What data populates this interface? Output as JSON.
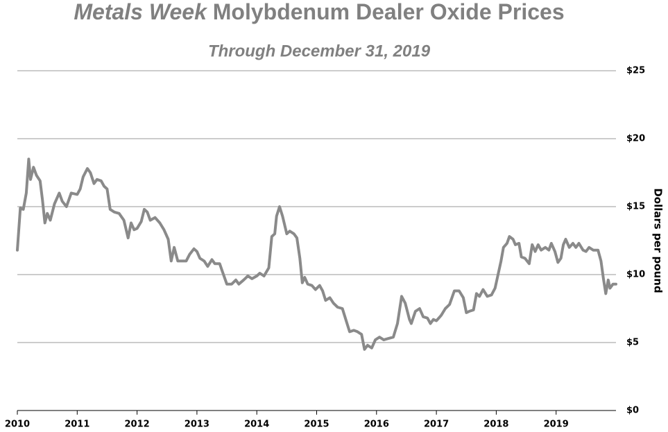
{
  "chart_data": {
    "type": "line",
    "title_source": "Metals Week",
    "title": "Molybdenum Dealer Oxide Prices",
    "subtitle": "Through December 31, 2019",
    "y_label": "Dollars per pound",
    "xlim": [
      2010,
      2020
    ],
    "xticks": [
      2010,
      2011,
      2012,
      2013,
      2014,
      2015,
      2016,
      2017,
      2018,
      2019
    ],
    "ylim": [
      0,
      25
    ],
    "yticks": [
      {
        "value": 0,
        "label": "$0"
      },
      {
        "value": 5,
        "label": "$5"
      },
      {
        "value": 10,
        "label": "$10"
      },
      {
        "value": 15,
        "label": "$15"
      },
      {
        "value": 20,
        "label": "$20"
      },
      {
        "value": 25,
        "label": "$25"
      }
    ],
    "grid": true,
    "series": [
      {
        "color": "#8a8a8a",
        "x": [
          2010.0,
          2010.05,
          2010.1,
          2010.15,
          2010.19,
          2010.22,
          2010.27,
          2010.32,
          2010.38,
          2010.42,
          2010.46,
          2010.5,
          2010.55,
          2010.62,
          2010.7,
          2010.75,
          2010.82,
          2010.9,
          2011.0,
          2011.05,
          2011.1,
          2011.17,
          2011.22,
          2011.28,
          2011.33,
          2011.4,
          2011.45,
          2011.5,
          2011.55,
          2011.62,
          2011.7,
          2011.78,
          2011.85,
          2011.9,
          2011.95,
          2012.0,
          2012.07,
          2012.12,
          2012.17,
          2012.22,
          2012.3,
          2012.38,
          2012.45,
          2012.52,
          2012.57,
          2012.62,
          2012.68,
          2012.75,
          2012.82,
          2012.88,
          2012.95,
          2013.0,
          2013.05,
          2013.12,
          2013.18,
          2013.25,
          2013.3,
          2013.38,
          2013.42,
          2013.5,
          2013.58,
          2013.65,
          2013.7,
          2013.78,
          2013.85,
          2013.92,
          2014.0,
          2014.05,
          2014.12,
          2014.2,
          2014.25,
          2014.3,
          2014.33,
          2014.38,
          2014.43,
          2014.5,
          2014.55,
          2014.62,
          2014.67,
          2014.72,
          2014.76,
          2014.8,
          2014.85,
          2014.92,
          2014.98,
          2015.05,
          2015.1,
          2015.15,
          2015.22,
          2015.28,
          2015.35,
          2015.43,
          2015.5,
          2015.55,
          2015.62,
          2015.68,
          2015.75,
          2015.8,
          2015.85,
          2015.92,
          2015.98,
          2016.05,
          2016.12,
          2016.2,
          2016.28,
          2016.35,
          2016.42,
          2016.48,
          2016.55,
          2016.58,
          2016.65,
          2016.72,
          2016.78,
          2016.85,
          2016.9,
          2016.95,
          2017.0,
          2017.08,
          2017.15,
          2017.22,
          2017.3,
          2017.38,
          2017.45,
          2017.5,
          2017.55,
          2017.62,
          2017.67,
          2017.72,
          2017.78,
          2017.85,
          2017.92,
          2017.98,
          2018.03,
          2018.08,
          2018.12,
          2018.18,
          2018.22,
          2018.28,
          2018.32,
          2018.38,
          2018.42,
          2018.48,
          2018.55,
          2018.6,
          2018.65,
          2018.7,
          2018.75,
          2018.82,
          2018.88,
          2018.92,
          2018.98,
          2019.03,
          2019.08,
          2019.12,
          2019.16,
          2019.22,
          2019.28,
          2019.33,
          2019.38,
          2019.45,
          2019.5,
          2019.55,
          2019.62,
          2019.7,
          2019.75,
          2019.79,
          2019.83,
          2019.87,
          2019.9,
          2019.95,
          2020.0
        ],
        "values": [
          11.8,
          14.9,
          14.8,
          16.0,
          18.5,
          17.0,
          17.9,
          17.3,
          16.9,
          15.5,
          13.8,
          14.5,
          14.0,
          15.2,
          16.0,
          15.4,
          15.0,
          16.0,
          15.9,
          16.3,
          17.2,
          17.8,
          17.5,
          16.7,
          17.0,
          16.9,
          16.5,
          16.3,
          14.8,
          14.6,
          14.5,
          14.0,
          12.7,
          13.8,
          13.3,
          13.4,
          13.9,
          14.8,
          14.6,
          14.0,
          14.2,
          13.8,
          13.3,
          12.6,
          11.0,
          12.0,
          11.0,
          11.0,
          11.0,
          11.5,
          11.9,
          11.7,
          11.2,
          11.0,
          10.6,
          11.1,
          10.8,
          10.8,
          10.3,
          9.3,
          9.3,
          9.6,
          9.3,
          9.6,
          9.9,
          9.7,
          9.9,
          10.1,
          9.9,
          10.5,
          12.8,
          13.0,
          14.3,
          15.0,
          14.3,
          13.0,
          13.2,
          13.0,
          12.7,
          11.2,
          9.4,
          9.8,
          9.3,
          9.2,
          8.9,
          9.2,
          8.8,
          8.1,
          8.3,
          7.9,
          7.6,
          7.5,
          6.5,
          5.8,
          5.9,
          5.8,
          5.6,
          4.5,
          4.8,
          4.6,
          5.2,
          5.4,
          5.2,
          5.3,
          5.4,
          6.4,
          8.4,
          7.9,
          6.7,
          6.4,
          7.3,
          7.5,
          6.9,
          6.8,
          6.4,
          6.7,
          6.6,
          7.0,
          7.5,
          7.8,
          8.8,
          8.8,
          8.3,
          7.2,
          7.3,
          7.4,
          8.6,
          8.4,
          8.9,
          8.4,
          8.5,
          9.0,
          10.0,
          11.0,
          12.0,
          12.3,
          12.8,
          12.6,
          12.2,
          12.3,
          11.3,
          11.2,
          10.8,
          12.2,
          11.7,
          12.2,
          11.8,
          12.0,
          11.8,
          12.3,
          11.7,
          10.9,
          11.2,
          12.2,
          12.6,
          12.0,
          12.3,
          12.0,
          12.3,
          11.8,
          11.7,
          12.0,
          11.8,
          11.8,
          11.0,
          9.7,
          8.6,
          9.6,
          9.0,
          9.3,
          9.3
        ]
      }
    ]
  }
}
